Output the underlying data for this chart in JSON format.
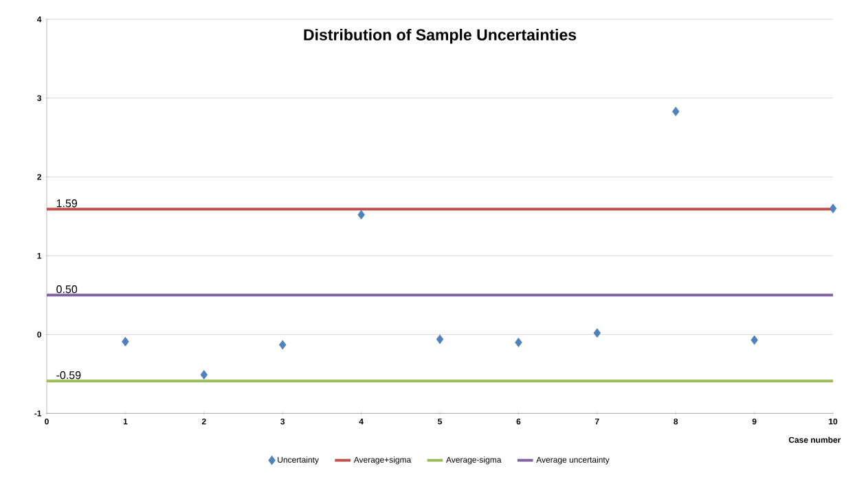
{
  "chart_data": {
    "type": "scatter",
    "title": "Distribution of Sample Uncertainties",
    "xlabel": "Case number",
    "xlim": [
      0,
      10
    ],
    "xticks": [
      0,
      1,
      2,
      3,
      4,
      5,
      6,
      7,
      8,
      9,
      10
    ],
    "ylim": [
      -1,
      4
    ],
    "yticks": [
      -1,
      0,
      1,
      2,
      3,
      4
    ],
    "grid": "y",
    "legend": "bottom",
    "series": [
      {
        "name": "Uncertainty",
        "marker": "diamond",
        "color": "#4f81bd",
        "x": [
          1,
          2,
          3,
          4,
          5,
          6,
          7,
          8,
          9,
          10
        ],
        "values": [
          -0.09,
          -0.51,
          -0.13,
          1.52,
          -0.06,
          -0.1,
          0.02,
          2.83,
          -0.07,
          1.6
        ]
      },
      {
        "name": "Average+sigma",
        "type": "line",
        "color": "#c0504d",
        "x": [
          0,
          10
        ],
        "values": [
          1.59,
          1.59
        ]
      },
      {
        "name": "Average-sigma",
        "type": "line",
        "color": "#9bbb59",
        "x": [
          0,
          10
        ],
        "values": [
          -0.59,
          -0.59
        ]
      },
      {
        "name": "Average uncertainty",
        "type": "line",
        "color": "#8064a2",
        "x": [
          0,
          10
        ],
        "values": [
          0.5,
          0.5
        ]
      }
    ],
    "annotations": [
      {
        "text": "1.59",
        "y": 1.59
      },
      {
        "text": "0.50",
        "y": 0.5
      },
      {
        "text": "-0.59",
        "y": -0.59
      }
    ]
  }
}
